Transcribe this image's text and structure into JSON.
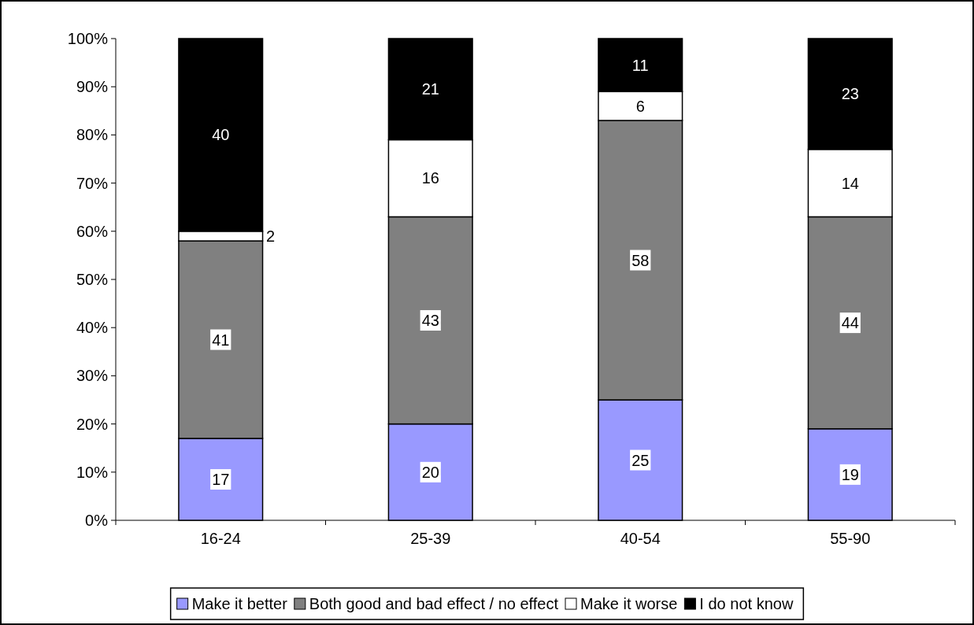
{
  "chart_data": {
    "type": "bar",
    "stacked": true,
    "categories": [
      "16-24",
      "25-39",
      "40-54",
      "55-90"
    ],
    "series": [
      {
        "name": "Make it better",
        "color": "#9999ff",
        "values": [
          17,
          20,
          25,
          19
        ]
      },
      {
        "name": "Both good and bad effect / no effect",
        "color": "#808080",
        "values": [
          41,
          43,
          58,
          44
        ]
      },
      {
        "name": "Make it worse",
        "color": "#ffffff",
        "values": [
          2,
          16,
          6,
          14
        ]
      },
      {
        "name": "I do not know",
        "color": "#000000",
        "values": [
          40,
          21,
          11,
          23
        ]
      }
    ],
    "ylim": [
      0,
      100
    ],
    "yticks": [
      {
        "value": 0,
        "label": "0%"
      },
      {
        "value": 10,
        "label": "10%"
      },
      {
        "value": 20,
        "label": "20%"
      },
      {
        "value": 30,
        "label": "30%"
      },
      {
        "value": 40,
        "label": "40%"
      },
      {
        "value": 50,
        "label": "50%"
      },
      {
        "value": 60,
        "label": "60%"
      },
      {
        "value": 70,
        "label": "70%"
      },
      {
        "value": 80,
        "label": "80%"
      },
      {
        "value": 90,
        "label": "90%"
      },
      {
        "value": 100,
        "label": "100%"
      }
    ],
    "data_labels": true,
    "grid": false,
    "legend": "bottom"
  }
}
